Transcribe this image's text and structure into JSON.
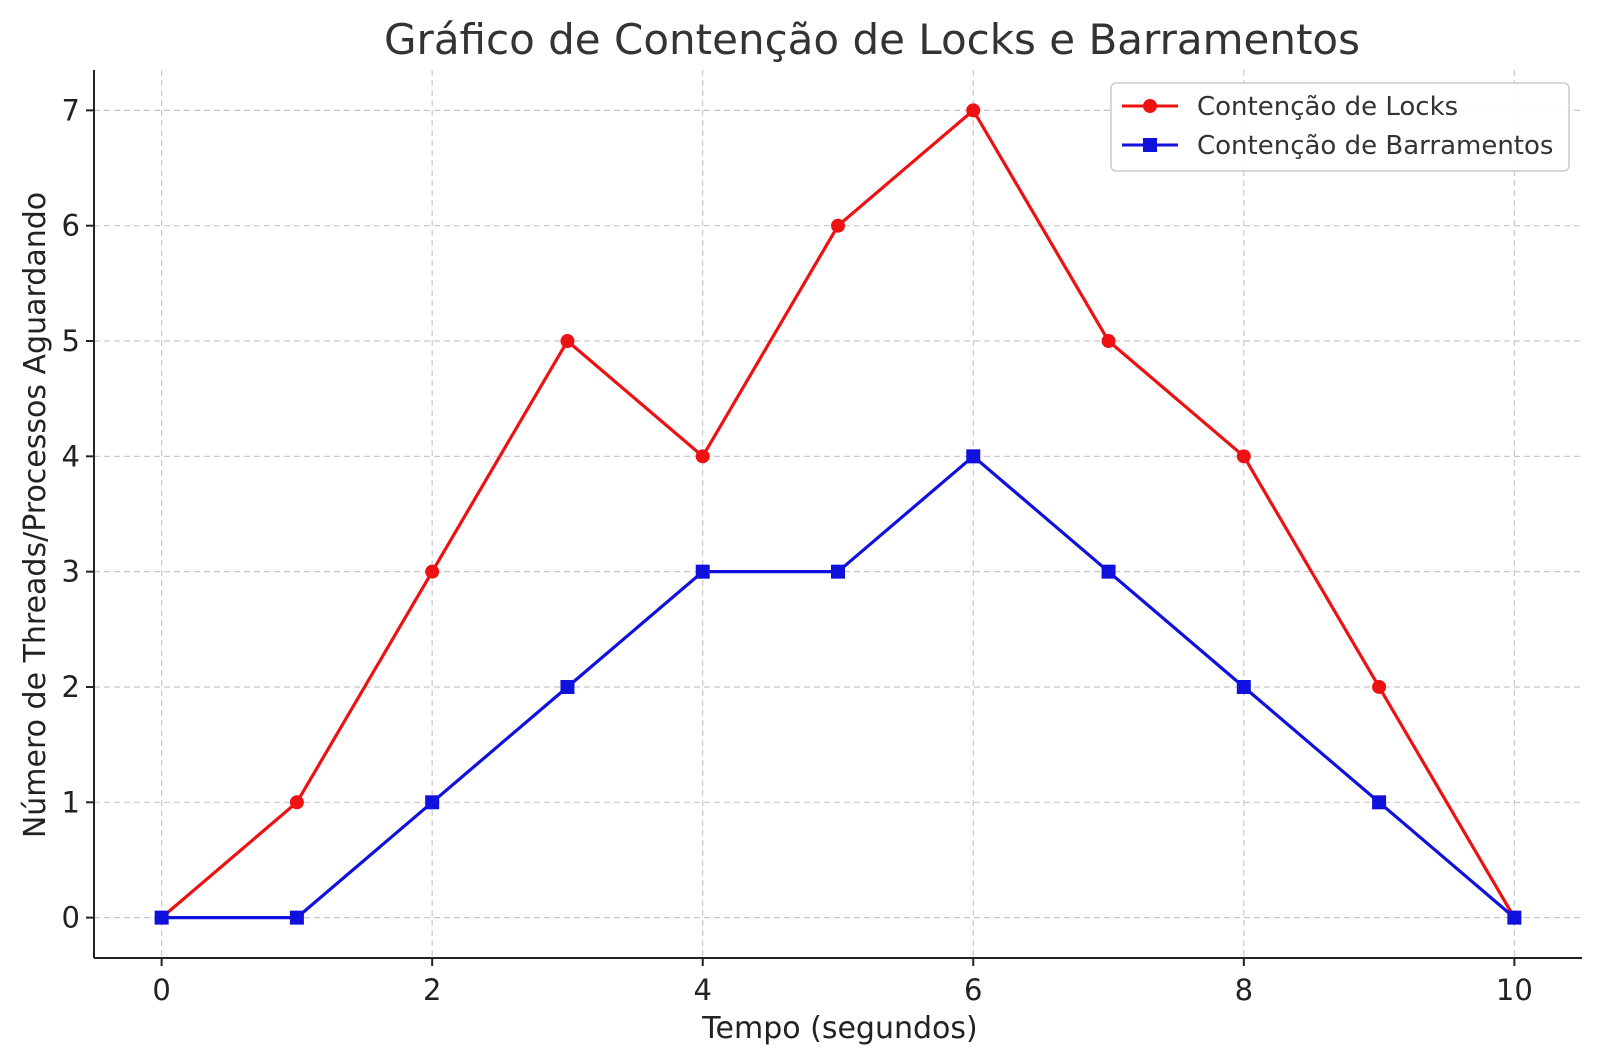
{
  "chart_data": {
    "type": "line",
    "title": "Gráfico de Contenção de Locks e Barramentos",
    "xlabel": "Tempo (segundos)",
    "ylabel": "Número de Threads/Processos Aguardando",
    "x": [
      0,
      1,
      2,
      3,
      4,
      5,
      6,
      7,
      8,
      9,
      10
    ],
    "xlim": [
      -0.5,
      10.5
    ],
    "ylim": [
      -0.35,
      7.35
    ],
    "xticks": [
      0,
      2,
      4,
      6,
      8,
      10
    ],
    "yticks": [
      0,
      1,
      2,
      3,
      4,
      5,
      6,
      7
    ],
    "grid": true,
    "legend_position": "top-right",
    "series": [
      {
        "name": "Contenção de Locks",
        "color": "#ee1111",
        "marker": "circle",
        "values": [
          0,
          1,
          3,
          5,
          4,
          6,
          7,
          5,
          4,
          2,
          0
        ]
      },
      {
        "name": "Contenção de Barramentos",
        "color": "#1111dd",
        "marker": "square",
        "values": [
          0,
          0,
          1,
          2,
          3,
          3,
          4,
          3,
          2,
          1,
          0
        ]
      }
    ]
  }
}
